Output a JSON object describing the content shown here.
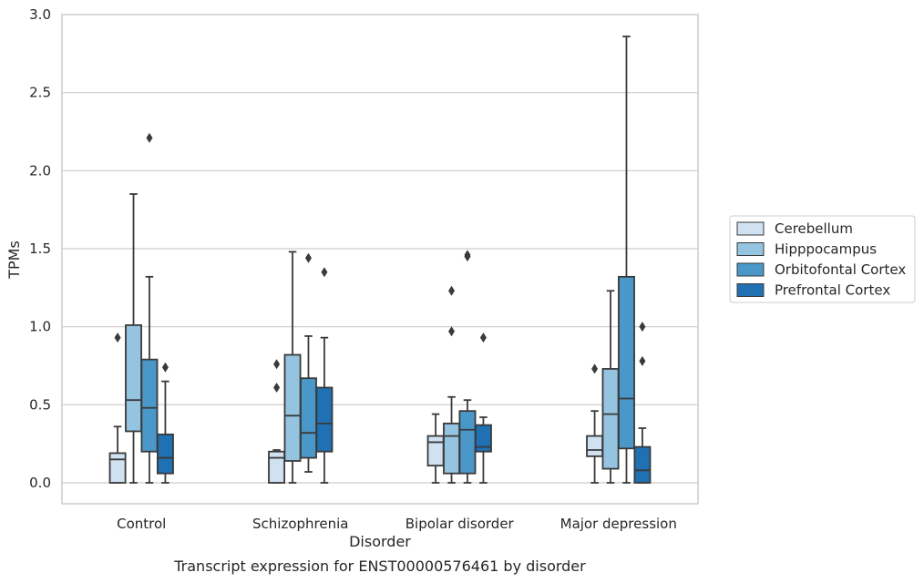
{
  "chart_data": {
    "type": "box",
    "title": "",
    "caption": "Transcript expression for ENST00000576461 by disorder",
    "xlabel": "Disorder",
    "ylabel": "TPMs",
    "ylim": [
      -0.14,
      3.0
    ],
    "yticks": [
      0.0,
      0.5,
      1.0,
      1.5,
      2.0,
      2.5,
      3.0
    ],
    "ytick_labels": [
      "0.0",
      "0.5",
      "1.0",
      "1.5",
      "2.0",
      "2.5",
      "3.0"
    ],
    "grid": "horizontal",
    "legend_position": "right",
    "categories": [
      "Control",
      "Schizophrenia",
      "Bipolar disorder",
      "Major depression"
    ],
    "series": [
      {
        "name": "Cerebellum",
        "color": "#d0e1f2",
        "boxes": [
          {
            "whisker_low": 0.0,
            "q1": 0.0,
            "median": 0.15,
            "q3": 0.19,
            "whisker_high": 0.36,
            "outliers": [
              0.93
            ]
          },
          {
            "whisker_low": 0.0,
            "q1": 0.0,
            "median": 0.16,
            "q3": 0.2,
            "whisker_high": 0.21,
            "outliers": [
              0.61,
              0.76
            ]
          },
          {
            "whisker_low": 0.0,
            "q1": 0.11,
            "median": 0.26,
            "q3": 0.3,
            "whisker_high": 0.44,
            "outliers": []
          },
          {
            "whisker_low": 0.0,
            "q1": 0.17,
            "median": 0.21,
            "q3": 0.3,
            "whisker_high": 0.46,
            "outliers": [
              0.73
            ]
          }
        ]
      },
      {
        "name": "Hipppocampus",
        "color": "#94c4df",
        "boxes": [
          {
            "whisker_low": 0.0,
            "q1": 0.33,
            "median": 0.53,
            "q3": 1.01,
            "whisker_high": 1.85,
            "outliers": []
          },
          {
            "whisker_low": 0.0,
            "q1": 0.14,
            "median": 0.43,
            "q3": 0.82,
            "whisker_high": 1.48,
            "outliers": []
          },
          {
            "whisker_low": 0.0,
            "q1": 0.06,
            "median": 0.3,
            "q3": 0.38,
            "whisker_high": 0.55,
            "outliers": [
              0.97,
              1.23
            ]
          },
          {
            "whisker_low": 0.0,
            "q1": 0.09,
            "median": 0.44,
            "q3": 0.73,
            "whisker_high": 1.23,
            "outliers": []
          }
        ]
      },
      {
        "name": "Orbitofontal Cortex",
        "color": "#4a98c9",
        "boxes": [
          {
            "whisker_low": 0.0,
            "q1": 0.2,
            "median": 0.48,
            "q3": 0.79,
            "whisker_high": 1.32,
            "outliers": [
              2.21
            ]
          },
          {
            "whisker_low": 0.07,
            "q1": 0.16,
            "median": 0.32,
            "q3": 0.67,
            "whisker_high": 0.94,
            "outliers": [
              1.44
            ]
          },
          {
            "whisker_low": 0.0,
            "q1": 0.06,
            "median": 0.34,
            "q3": 0.46,
            "whisker_high": 0.53,
            "outliers": [
              1.45,
              1.46
            ]
          },
          {
            "whisker_low": 0.0,
            "q1": 0.22,
            "median": 0.54,
            "q3": 1.32,
            "whisker_high": 2.86,
            "outliers": []
          }
        ]
      },
      {
        "name": "Prefrontal Cortex",
        "color": "#2070b4",
        "boxes": [
          {
            "whisker_low": 0.0,
            "q1": 0.06,
            "median": 0.16,
            "q3": 0.31,
            "whisker_high": 0.65,
            "outliers": [
              0.74
            ]
          },
          {
            "whisker_low": 0.0,
            "q1": 0.2,
            "median": 0.38,
            "q3": 0.61,
            "whisker_high": 0.93,
            "outliers": [
              1.35
            ]
          },
          {
            "whisker_low": 0.0,
            "q1": 0.2,
            "median": 0.23,
            "q3": 0.37,
            "whisker_high": 0.42,
            "outliers": [
              0.93
            ]
          },
          {
            "whisker_low": 0.0,
            "q1": 0.0,
            "median": 0.08,
            "q3": 0.23,
            "whisker_high": 0.35,
            "outliers": [
              0.78,
              1.0
            ]
          }
        ]
      }
    ]
  }
}
